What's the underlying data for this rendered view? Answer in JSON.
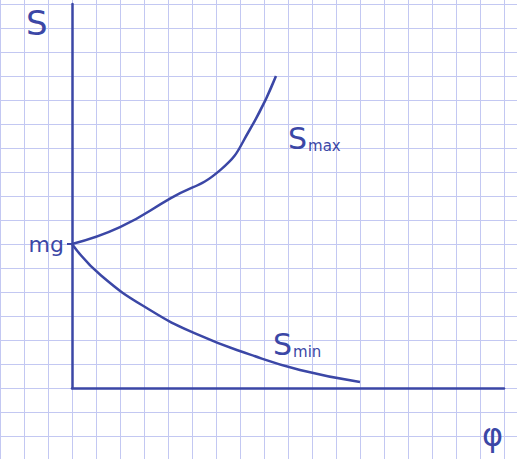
{
  "chart_data": {
    "type": "line",
    "y_label": "S",
    "x_label": "φ",
    "xlim": [
      0,
      18
    ],
    "ylim": [
      0,
      16
    ],
    "xticks": [],
    "yticks": [
      {
        "value": 6,
        "label": "mg"
      }
    ],
    "tick_labels": "y",
    "grid": true,
    "series": [
      {
        "name": "S",
        "subscript": "max",
        "color": "#3b47a6",
        "x": [
          0,
          2,
          4.1,
          6.2,
          7.4,
          8.5
        ],
        "values": [
          6,
          6.7,
          7.9,
          9.1,
          10.75,
          13
        ]
      },
      {
        "name": "S",
        "subscript": "min",
        "color": "#3b47a6",
        "x": [
          0,
          1.2,
          3.25,
          5.3,
          7.4,
          9.5,
          12
        ],
        "values": [
          6,
          4.7,
          3.25,
          2.2,
          1.4,
          0.75,
          0.25
        ]
      }
    ]
  }
}
